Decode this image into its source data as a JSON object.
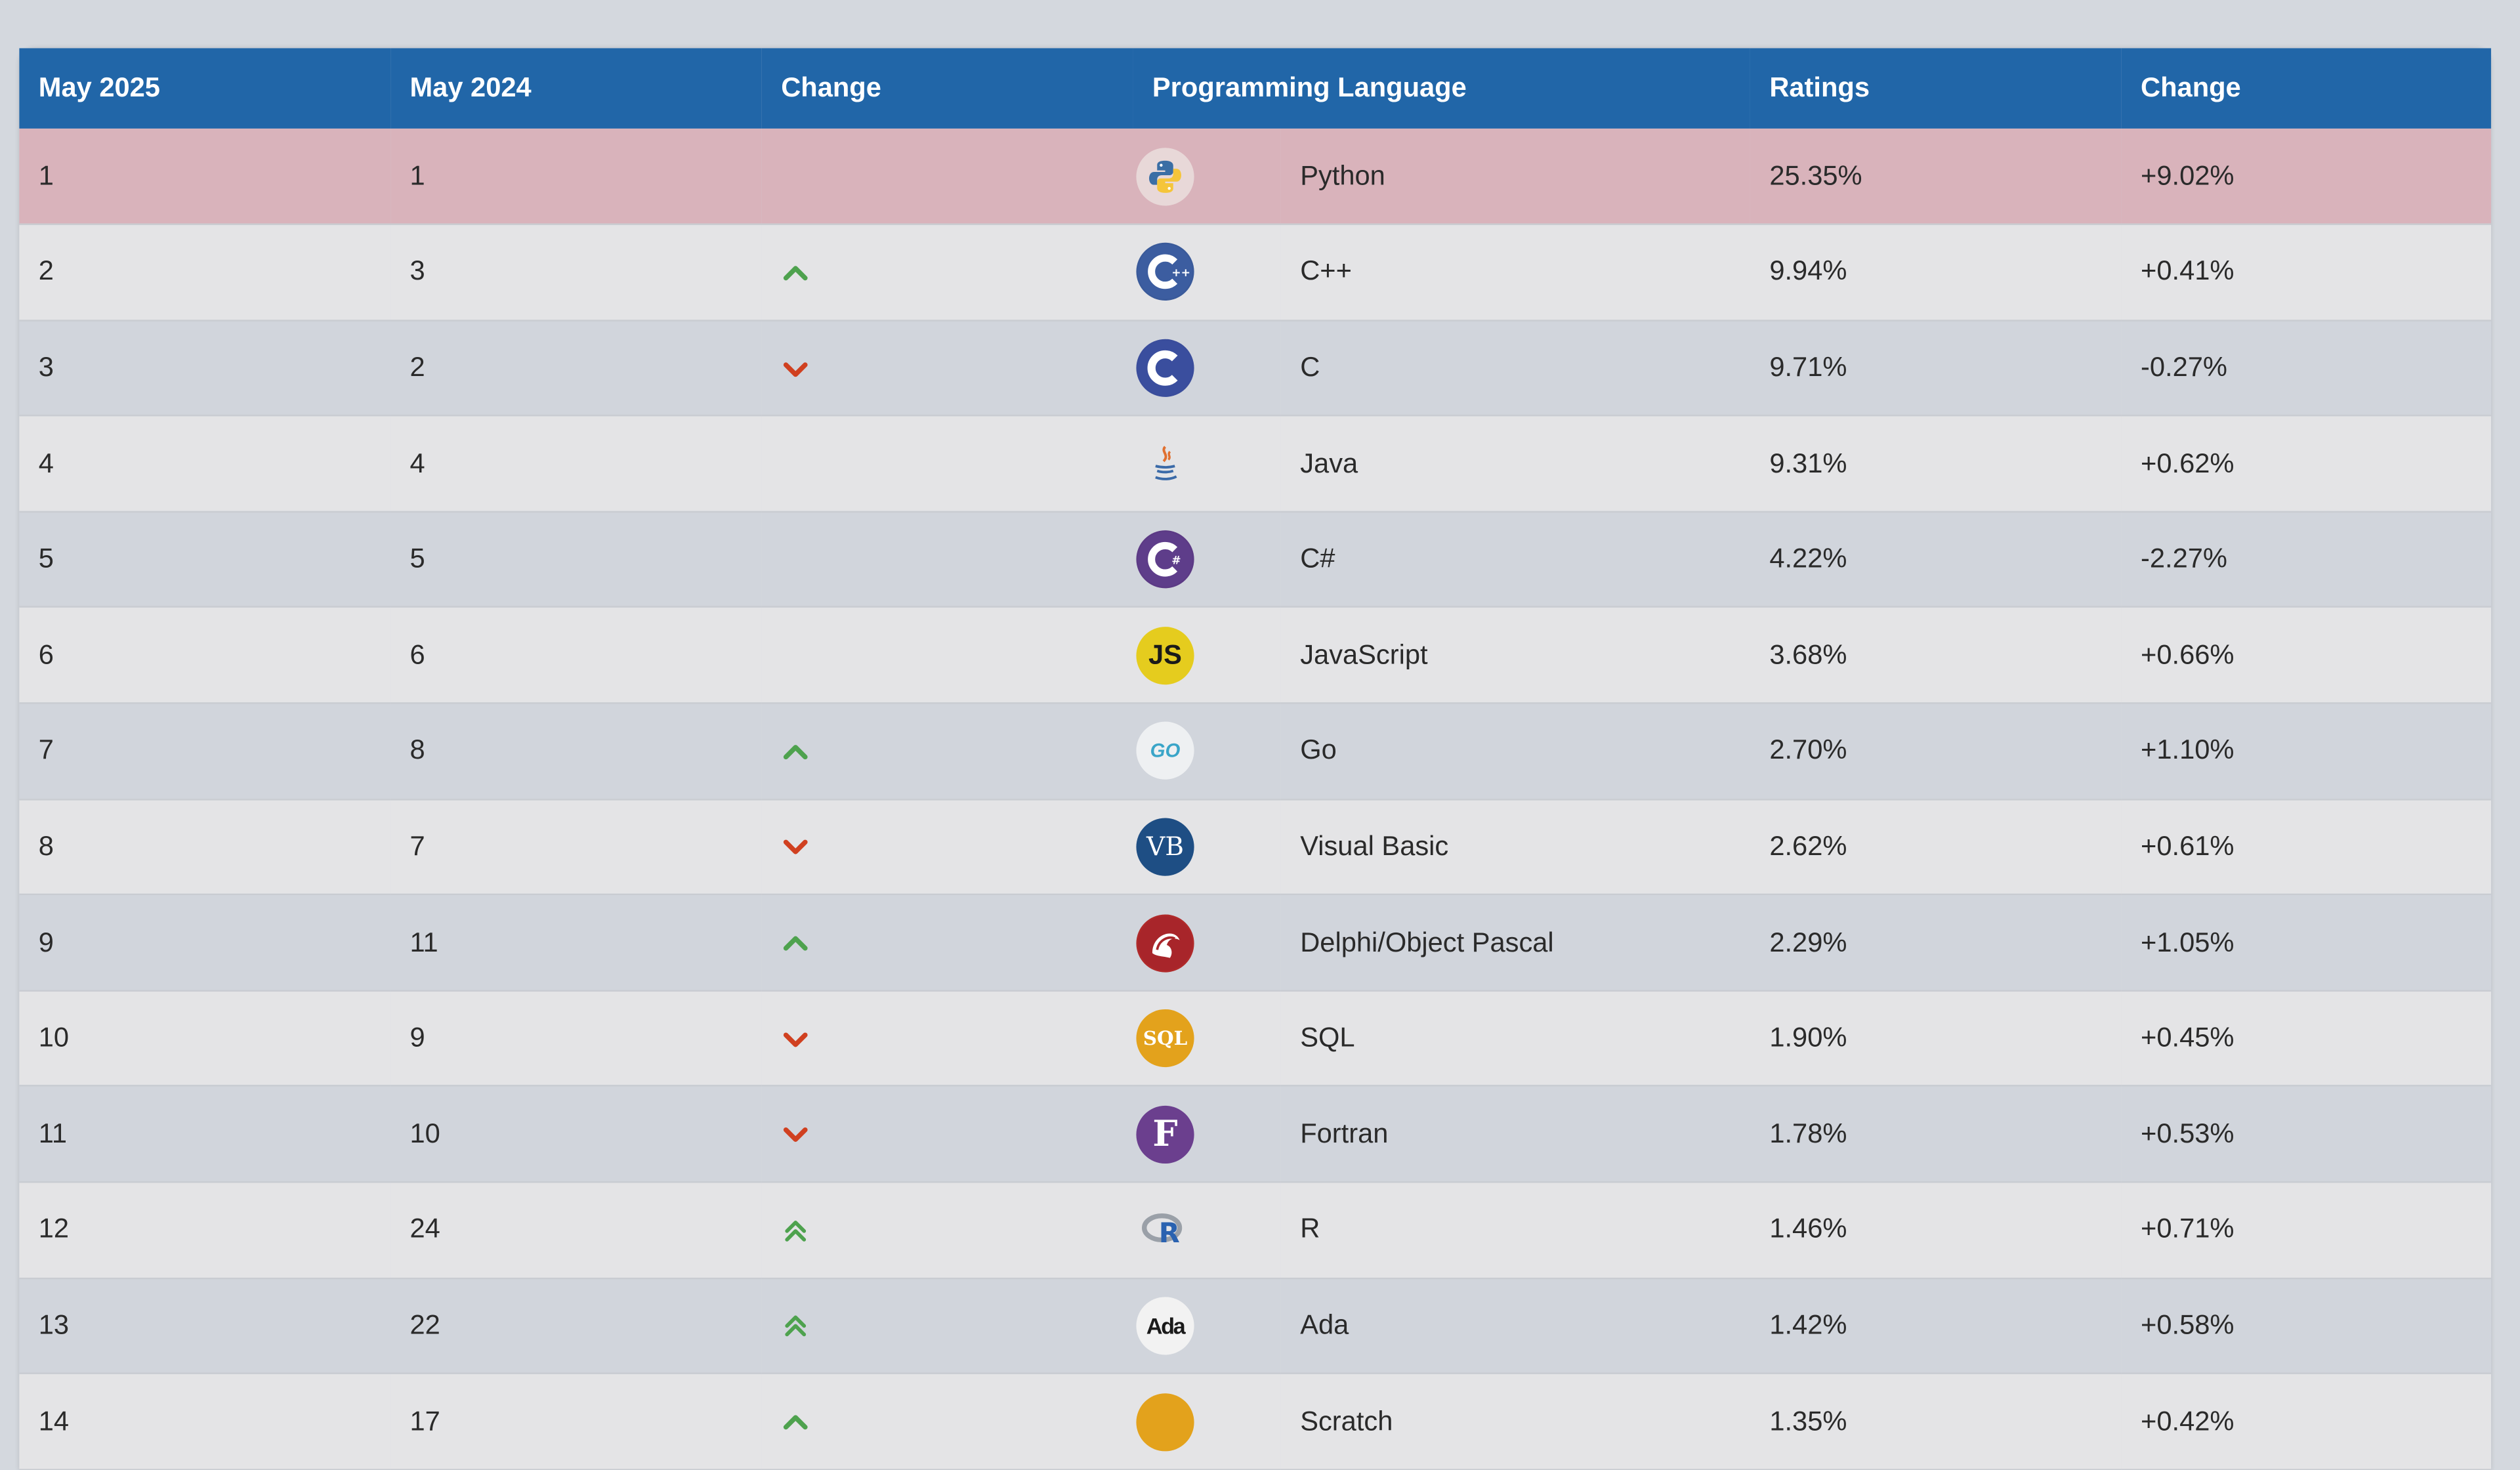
{
  "header": {
    "col_this_year": "May 2025",
    "col_last_year": "May 2024",
    "col_change": "Change",
    "col_language": "Programming Language",
    "col_ratings": "Ratings",
    "col_rating_change": "Change"
  },
  "rows": [
    {
      "rank": "1",
      "prev": "1",
      "trend": "none",
      "language": "Python",
      "rating": "25.35%",
      "change": "+9.02%",
      "logo": "python-logo",
      "highlight": true
    },
    {
      "rank": "2",
      "prev": "3",
      "trend": "up",
      "language": "C++",
      "rating": "9.94%",
      "change": "+0.41%",
      "logo": "cpp-logo"
    },
    {
      "rank": "3",
      "prev": "2",
      "trend": "down",
      "language": "C",
      "rating": "9.71%",
      "change": "-0.27%",
      "logo": "c-logo"
    },
    {
      "rank": "4",
      "prev": "4",
      "trend": "none",
      "language": "Java",
      "rating": "9.31%",
      "change": "+0.62%",
      "logo": "java-logo"
    },
    {
      "rank": "5",
      "prev": "5",
      "trend": "none",
      "language": "C#",
      "rating": "4.22%",
      "change": "-2.27%",
      "logo": "csharp-logo"
    },
    {
      "rank": "6",
      "prev": "6",
      "trend": "none",
      "language": "JavaScript",
      "rating": "3.68%",
      "change": "+0.66%",
      "logo": "javascript-logo"
    },
    {
      "rank": "7",
      "prev": "8",
      "trend": "up",
      "language": "Go",
      "rating": "2.70%",
      "change": "+1.10%",
      "logo": "go-logo"
    },
    {
      "rank": "8",
      "prev": "7",
      "trend": "down",
      "language": "Visual Basic",
      "rating": "2.62%",
      "change": "+0.61%",
      "logo": "visual-basic-logo"
    },
    {
      "rank": "9",
      "prev": "11",
      "trend": "up",
      "language": "Delphi/Object Pascal",
      "rating": "2.29%",
      "change": "+1.05%",
      "logo": "delphi-logo"
    },
    {
      "rank": "10",
      "prev": "9",
      "trend": "down",
      "language": "SQL",
      "rating": "1.90%",
      "change": "+0.45%",
      "logo": "sql-logo"
    },
    {
      "rank": "11",
      "prev": "10",
      "trend": "down",
      "language": "Fortran",
      "rating": "1.78%",
      "change": "+0.53%",
      "logo": "fortran-logo"
    },
    {
      "rank": "12",
      "prev": "24",
      "trend": "double-up",
      "language": "R",
      "rating": "1.46%",
      "change": "+0.71%",
      "logo": "r-logo"
    },
    {
      "rank": "13",
      "prev": "22",
      "trend": "double-up",
      "language": "Ada",
      "rating": "1.42%",
      "change": "+0.58%",
      "logo": "ada-logo"
    },
    {
      "rank": "14",
      "prev": "17",
      "trend": "up",
      "language": "Scratch",
      "rating": "1.35%",
      "change": "+0.42%",
      "logo": "scratch-logo"
    }
  ],
  "logo_text": {
    "javascript": "JS",
    "go": "GO",
    "visual_basic": "VB",
    "sql": "SQL",
    "fortran": "F",
    "r": "R",
    "ada": "Ada"
  },
  "colors": {
    "header_bg": "#2166a8",
    "row_highlight": "#d9b3bb",
    "row_odd": "#d1d5dc",
    "row_even": "#e4e4e6",
    "trend_up": "#4ea24e",
    "trend_down": "#d04020"
  }
}
